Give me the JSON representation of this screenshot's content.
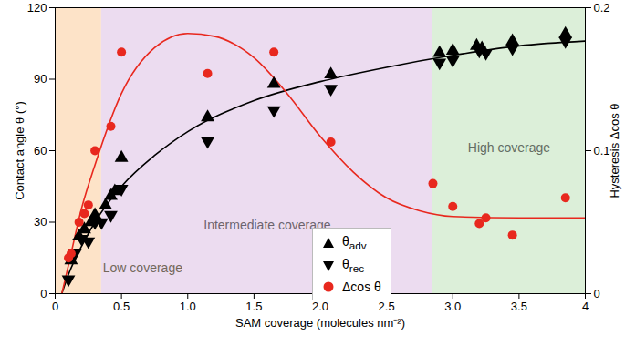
{
  "chart_data": {
    "type": "scatter",
    "xlabel": "SAM coverage (molecules nm⁻²)",
    "ylabel": "Contact angle θ (°)",
    "y2label": "Hysteresis Δcos θ",
    "xlim": [
      0,
      4
    ],
    "xticks": [
      0,
      0.5,
      {
        "value": 1,
        "label": "1.0"
      },
      1.5,
      {
        "value": 2,
        "label": "2.0"
      },
      2.5,
      {
        "value": 3,
        "label": "3.0"
      },
      3.5,
      4
    ],
    "ylim": [
      0,
      120
    ],
    "yticks": [
      0,
      30,
      60,
      90,
      120
    ],
    "y2lim": [
      0,
      0.2
    ],
    "y2ticks": [
      0,
      0.1,
      0.2
    ],
    "legend": "center",
    "regions": [
      {
        "label": "Low coverage",
        "x": [
          0,
          0.35
        ],
        "color": "#fde3c8"
      },
      {
        "label": "Intermediate coverage",
        "x": [
          0.35,
          2.85
        ],
        "color": "#ecdcf0"
      },
      {
        "label": "High coverage",
        "x": [
          2.85,
          4
        ],
        "color": "#dcefd9"
      }
    ],
    "series": [
      {
        "type": "line",
        "color": "#000000",
        "axis": "y",
        "x": [
          0.05,
          0.1,
          0.2,
          0.3,
          0.5,
          0.75,
          1,
          1.5,
          2,
          2.5,
          3,
          3.5,
          4
        ],
        "values": [
          0,
          8,
          20,
          30,
          45,
          58,
          68,
          81,
          89,
          95,
          100,
          104,
          106
        ]
      },
      {
        "type": "line",
        "color": "#e8281e",
        "axis": "y2",
        "x": [
          0.05,
          0.1,
          0.2,
          0.3,
          0.5,
          0.75,
          1,
          1.2,
          1.5,
          1.75,
          2,
          2.25,
          2.5,
          2.75,
          3,
          3.5,
          4
        ],
        "values": [
          0,
          0.02,
          0.06,
          0.09,
          0.14,
          0.172,
          0.182,
          0.18,
          0.165,
          0.14,
          0.11,
          0.085,
          0.067,
          0.058,
          0.054,
          0.053,
          0.053
        ]
      },
      {
        "name": "θadv",
        "type": "scatter",
        "marker": "triangle-up",
        "color": "#000000",
        "axis": "y",
        "x": [
          0.12,
          0.18,
          0.22,
          0.27,
          0.3,
          0.38,
          0.42,
          0.45,
          0.5,
          1.15,
          1.65,
          2.08,
          2.9,
          3.0,
          3.18,
          3.22,
          3.45,
          3.85
        ],
        "values": [
          14,
          24,
          27,
          30,
          33,
          37,
          41,
          43,
          57,
          74,
          88,
          92,
          101,
          102,
          104,
          103,
          106,
          109
        ]
      },
      {
        "name": "θrec",
        "type": "scatter",
        "marker": "triangle-down",
        "color": "#000000",
        "axis": "y",
        "x": [
          0.1,
          0.15,
          0.2,
          0.25,
          0.3,
          0.35,
          0.42,
          0.5,
          1.15,
          1.65,
          2.08,
          2.9,
          3.0,
          3.2,
          3.25,
          3.45,
          3.85
        ],
        "values": [
          6,
          17,
          23,
          22,
          30,
          30,
          33,
          44,
          64,
          77,
          86,
          97,
          98,
          102,
          101,
          103,
          106
        ]
      },
      {
        "name": "Δcos θ",
        "type": "scatter",
        "marker": "circle",
        "color": "#e8281e",
        "axis": "y2",
        "x": [
          0.1,
          0.12,
          0.18,
          0.22,
          0.25,
          0.3,
          0.42,
          0.5,
          1.15,
          1.65,
          2.08,
          2.85,
          3.0,
          3.2,
          3.25,
          3.45,
          3.85
        ],
        "values": [
          0.025,
          0.028,
          0.05,
          0.056,
          0.062,
          0.1,
          0.117,
          0.169,
          0.154,
          0.169,
          0.106,
          0.077,
          0.061,
          0.049,
          0.053,
          0.041,
          0.067
        ]
      }
    ]
  }
}
